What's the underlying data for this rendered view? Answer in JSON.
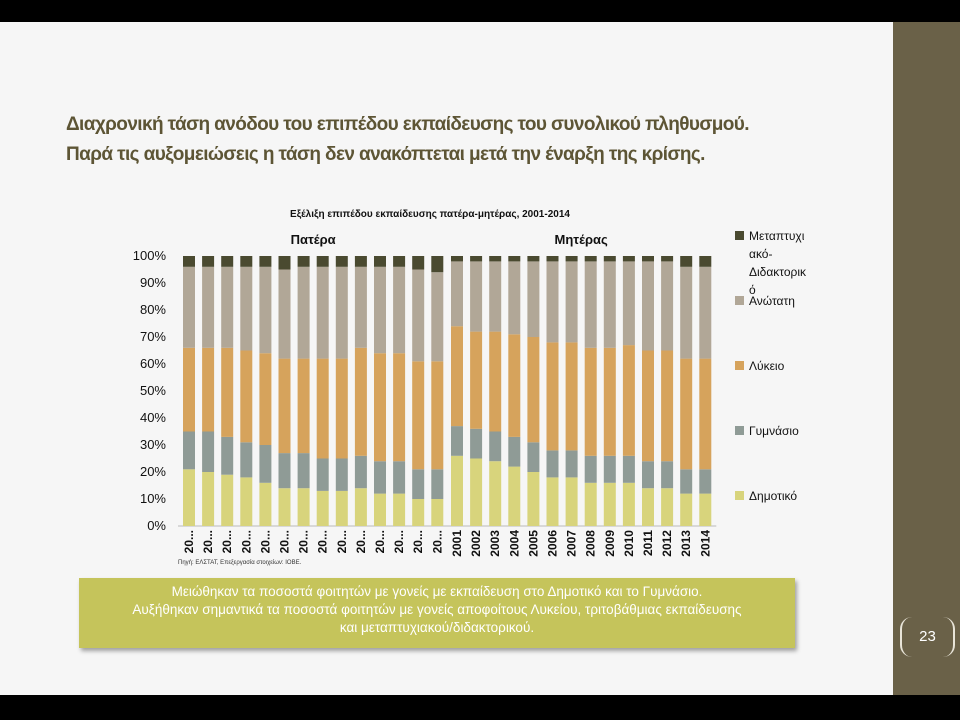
{
  "slide": {
    "title_lines": [
      "Διαχρονική τάση ανόδου του επιπέδου εκπαίδευσης του συνολικού πληθυσμού.",
      "Παρά τις αυξομειώσεις η τάση δεν ανακόπτεται μετά την έναρξη της κρίσης."
    ],
    "source": "Πηγή: ΕΛΣΤΑΤ, Επεξεργασία στοιχείων: ΙΟΒΕ.",
    "note_lines": [
      "Μειώθηκαν τα ποσοστά φοιτητών με γονείς με εκπαίδευση στο Δημοτικό και το Γυμνάσιο.",
      "Αυξήθηκαν σημαντικά τα ποσοστά φοιτητών με γονείς αποφοίτους Λυκείου, τριτοβάθμιας εκπαίδευσης",
      "και μεταπτυχιακού/διδακτορικού."
    ],
    "page_number": "23",
    "colors": {
      "sidebar": "#6a6148",
      "title": "#5d5535",
      "note_box": "#c5c45b"
    }
  },
  "chart_data": {
    "type": "bar",
    "stacked": true,
    "title": "Εξέλιξη επιπέδου εκπαίδευσης πατέρα-μητέρας, 2001-2014",
    "y_ticks": [
      "0%",
      "10%",
      "20%",
      "30%",
      "40%",
      "50%",
      "60%",
      "70%",
      "80%",
      "90%",
      "100%"
    ],
    "ylim": [
      0,
      100
    ],
    "legend_position": "right",
    "legend": [
      {
        "name": "Μεταπτυχι\nακό-\nΔιδακτορικ\nό",
        "color": "#4a4a30"
      },
      {
        "name": "Ανώτατη",
        "color": "#b1a797"
      },
      {
        "name": "Λύκειο",
        "color": "#d6a35c"
      },
      {
        "name": "Γυμνάσιο",
        "color": "#8f9b96"
      },
      {
        "name": "Δημοτικό",
        "color": "#d8d47c"
      }
    ],
    "panels": [
      {
        "title": "Πατέρα",
        "categories": [
          "20...",
          "20...",
          "20...",
          "20...",
          "20...",
          "20...",
          "20...",
          "20...",
          "20...",
          "20...",
          "20...",
          "20...",
          "20...",
          "20..."
        ],
        "series": [
          {
            "name": "Δημοτικό",
            "values": [
              21,
              20,
              19,
              18,
              16,
              14,
              14,
              13,
              13,
              14,
              12,
              12,
              10,
              10
            ]
          },
          {
            "name": "Γυμνάσιο",
            "values": [
              14,
              15,
              14,
              13,
              14,
              13,
              13,
              12,
              12,
              12,
              12,
              12,
              11,
              11
            ]
          },
          {
            "name": "Λύκειο",
            "values": [
              31,
              31,
              33,
              34,
              34,
              35,
              35,
              37,
              37,
              40,
              40,
              40,
              40,
              40
            ]
          },
          {
            "name": "Ανώτατη",
            "values": [
              30,
              30,
              30,
              31,
              32,
              33,
              34,
              34,
              34,
              30,
              32,
              32,
              34,
              33
            ]
          },
          {
            "name": "Μεταπτυχιακό-Διδακτορικό",
            "values": [
              4,
              4,
              4,
              4,
              4,
              5,
              4,
              4,
              4,
              4,
              4,
              4,
              5,
              6
            ]
          }
        ]
      },
      {
        "title": "Μητέρας",
        "categories": [
          "2001",
          "2002",
          "2003",
          "2004",
          "2005",
          "2006",
          "2007",
          "2008",
          "2009",
          "2010",
          "2011",
          "2012",
          "2013",
          "2014"
        ],
        "series": [
          {
            "name": "Δημοτικό",
            "values": [
              26,
              25,
              24,
              22,
              20,
              18,
              18,
              16,
              16,
              16,
              14,
              14,
              12,
              12
            ]
          },
          {
            "name": "Γυμνάσιο",
            "values": [
              11,
              11,
              11,
              11,
              11,
              10,
              10,
              10,
              10,
              10,
              10,
              10,
              9,
              9
            ]
          },
          {
            "name": "Λύκειο",
            "values": [
              37,
              36,
              37,
              38,
              39,
              40,
              40,
              40,
              40,
              41,
              41,
              41,
              41,
              41
            ]
          },
          {
            "name": "Ανώτατη",
            "values": [
              24,
              26,
              26,
              27,
              28,
              30,
              30,
              32,
              32,
              31,
              33,
              33,
              34,
              34
            ]
          },
          {
            "name": "Μεταπτυχιακό-Διδακτορικό",
            "values": [
              2,
              2,
              2,
              2,
              2,
              2,
              2,
              2,
              2,
              2,
              2,
              2,
              4,
              4
            ]
          }
        ]
      }
    ]
  }
}
